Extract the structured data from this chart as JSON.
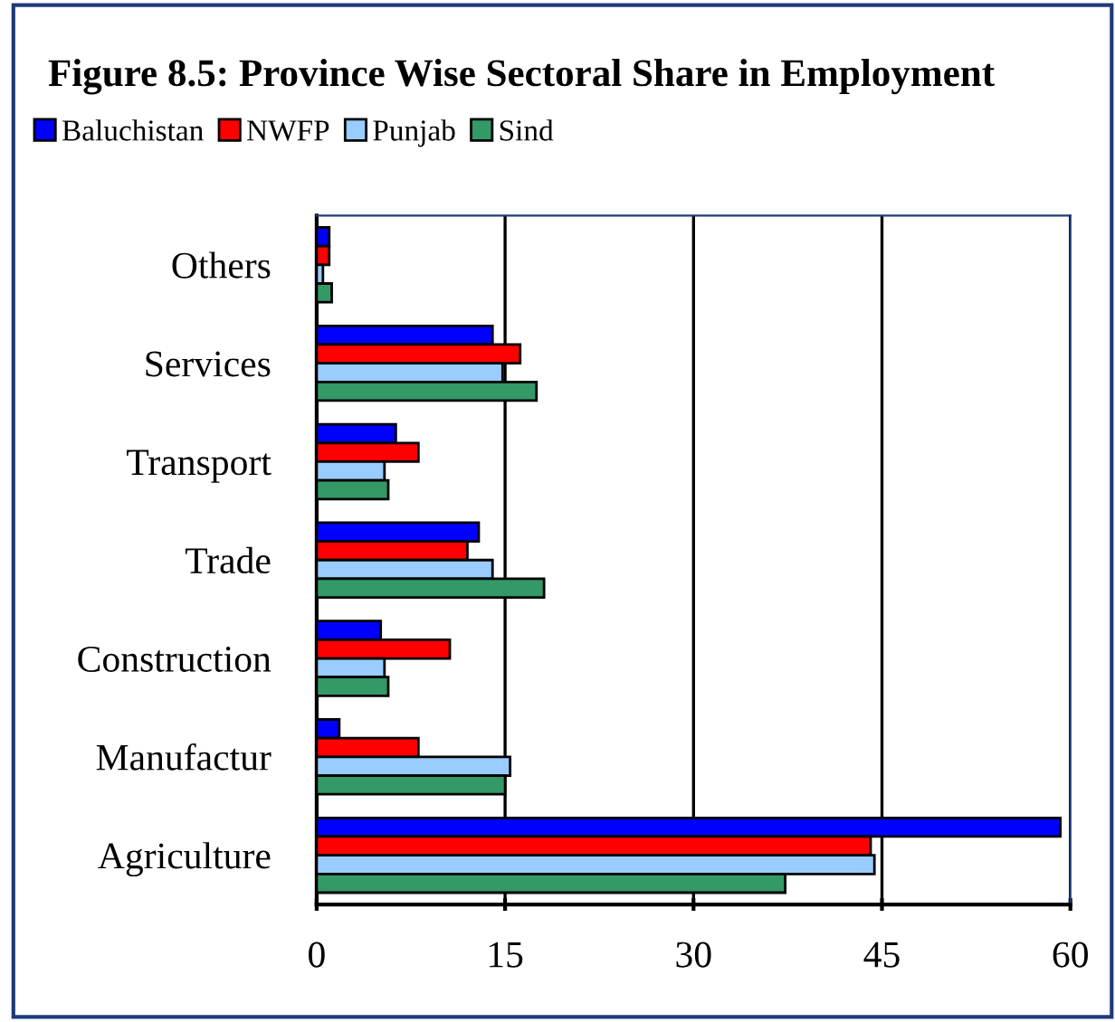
{
  "chart_data": {
    "type": "bar",
    "orientation": "horizontal",
    "title": "Figure 8.5: Province Wise Sectoral Share in Employment",
    "categories": [
      "Others",
      "Services",
      "Transport",
      "Trade",
      "Construction",
      "Manufactur",
      "Agriculture"
    ],
    "series": [
      {
        "name": "Baluchistan",
        "color": "#0000ff",
        "values": [
          1.0,
          14.0,
          6.3,
          12.9,
          5.1,
          1.8,
          59.2
        ]
      },
      {
        "name": "NWFP",
        "color": "#ff0000",
        "values": [
          1.0,
          16.2,
          8.1,
          12.0,
          10.6,
          8.1,
          44.1
        ]
      },
      {
        "name": "Punjab",
        "color": "#99ccff",
        "values": [
          0.5,
          14.8,
          5.4,
          14.0,
          5.4,
          15.4,
          44.4
        ]
      },
      {
        "name": "Sind",
        "color": "#339966",
        "values": [
          1.2,
          17.5,
          5.7,
          18.1,
          5.7,
          15.0,
          37.3
        ]
      }
    ],
    "xlim": [
      0,
      60
    ],
    "xticks": [
      0,
      15,
      30,
      45,
      60
    ],
    "grid": "x",
    "legend": "top left"
  }
}
